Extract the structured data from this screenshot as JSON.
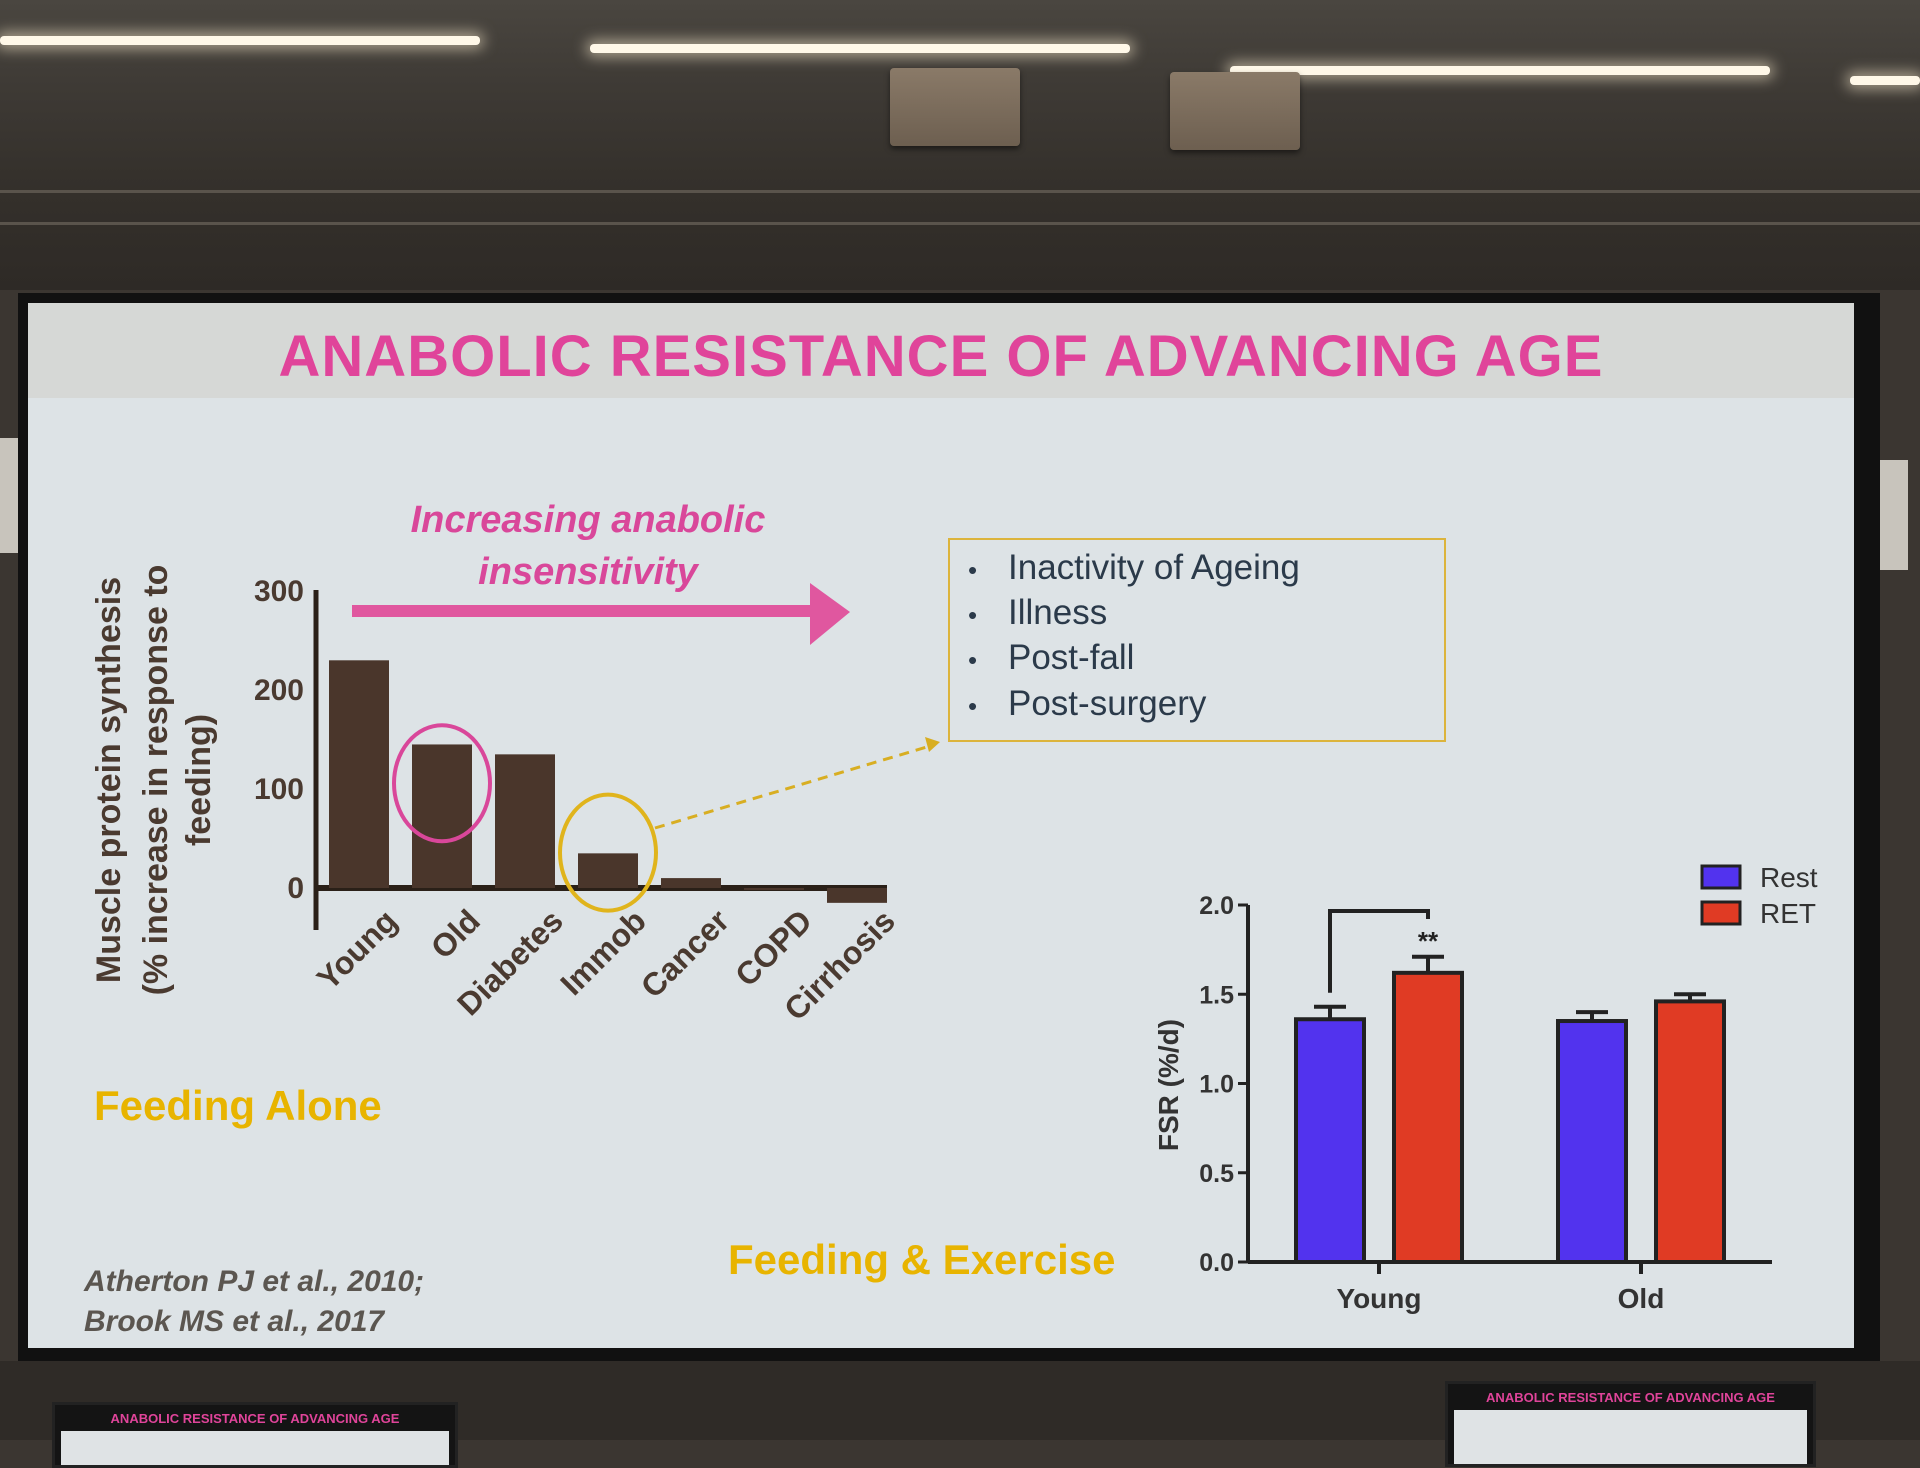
{
  "slide": {
    "title": "ANABOLIC RESISTANCE OF ADVANCING AGE",
    "arrow_label_line1": "Increasing anabolic",
    "arrow_label_line2": "insensitivity",
    "bullets": [
      "Inactivity of Ageing",
      "Illness",
      "Post-fall",
      "Post-surgery"
    ],
    "feeding_alone": "Feeding Alone",
    "feeding_exercise": "Feeding & Exercise",
    "citation_line1": "Atherton PJ et al., 2010;",
    "citation_line2": "Brook MS et al., 2017",
    "monitor_title_left": "ANABOLIC RESISTANCE OF ADVANCING AGE",
    "monitor_title_right": "ANABOLIC RESISTANCE OF ADVANCING AGE"
  },
  "colors": {
    "title_pink": "#e0449a",
    "bar_brown": "#4a362b",
    "highlight_pink": "#d9479a",
    "highlight_gold": "#e0b41c",
    "rest_blue": "#5233ee",
    "ret_red": "#e03b24"
  },
  "chart_data": [
    {
      "type": "bar",
      "title": "",
      "ylabel_line1": "Muscle protein synthesis",
      "ylabel_line2": "(% increase in response to",
      "ylabel_line3": "feeding)",
      "categories": [
        "Young",
        "Old",
        "Diabetes",
        "Immob",
        "Cancer",
        "COPD",
        "Cirrhosis"
      ],
      "values": [
        230,
        145,
        135,
        35,
        10,
        0,
        -15
      ],
      "yticks": [
        0,
        100,
        200,
        300
      ],
      "ylim": [
        -50,
        300
      ],
      "highlighted": [
        {
          "category": "Old",
          "color": "pink"
        },
        {
          "category": "Immob",
          "color": "gold"
        }
      ]
    },
    {
      "type": "bar",
      "ylabel": "FSR (%/d)",
      "categories": [
        "Young",
        "Old"
      ],
      "series": [
        {
          "name": "Rest",
          "values": [
            1.36,
            1.35
          ],
          "errors": [
            0.07,
            0.05
          ]
        },
        {
          "name": "RET",
          "values": [
            1.62,
            1.46
          ],
          "errors": [
            0.09,
            0.04
          ]
        }
      ],
      "yticks": [
        "0.0",
        "0.5",
        "1.0",
        "1.5",
        "2.0"
      ],
      "ylim": [
        0,
        2.0
      ],
      "annotation": "**"
    }
  ]
}
